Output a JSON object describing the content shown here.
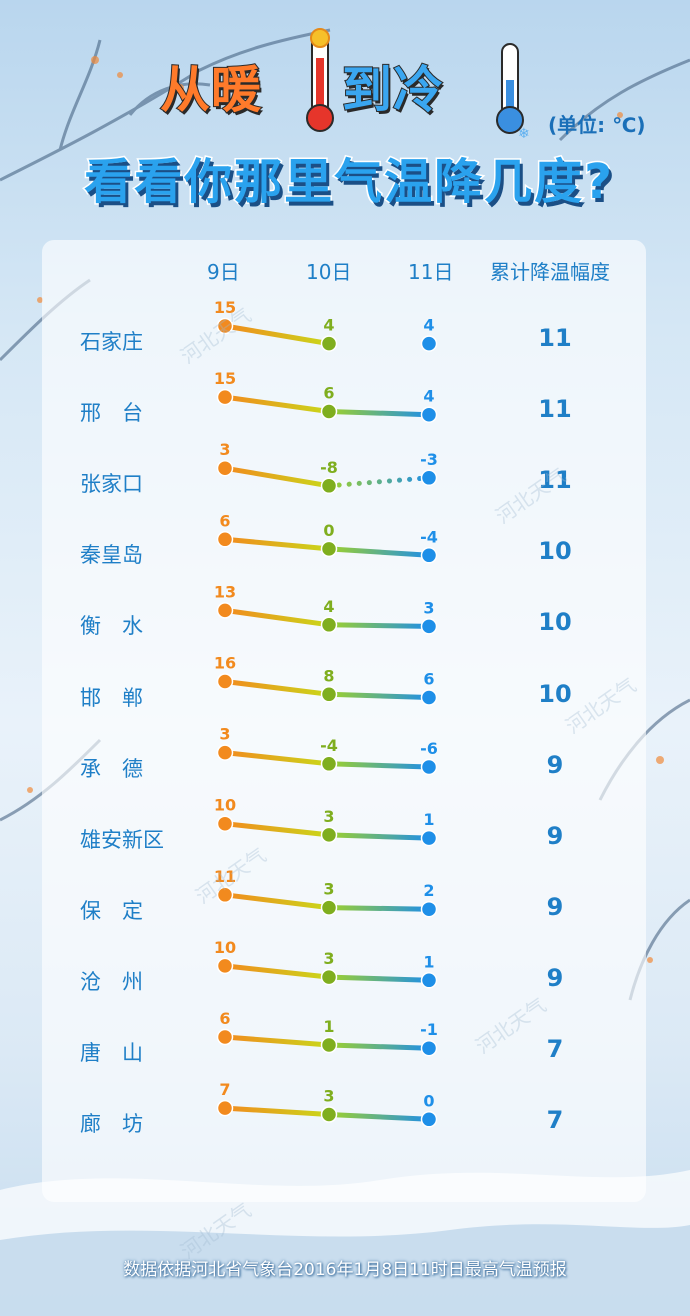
{
  "title": {
    "part_warm": "从暖",
    "part_to": "到冷",
    "subtitle": "看看你那里气温降几度?",
    "unit": "(单位: ℃)"
  },
  "watermark": "河北天气",
  "footer": "数据依据河北省气象台2016年1月8日11时日最高气温预报",
  "colors": {
    "warm": "#f28a1e",
    "mid": "#7fae1e",
    "cold": "#1e8fe8",
    "text": "#1f7fc7"
  },
  "chart_data": {
    "type": "table",
    "columns": [
      "9日",
      "10日",
      "11日",
      "累计降温幅度"
    ],
    "rows": [
      {
        "city": "石家庄",
        "values": [
          15,
          4,
          4
        ],
        "drop": 11
      },
      {
        "city": "邢　台",
        "values": [
          15,
          6,
          4
        ],
        "drop": 11
      },
      {
        "city": "张家口",
        "values": [
          3,
          -8,
          -3
        ],
        "drop": 11,
        "dotted_last_segment": true
      },
      {
        "city": "秦皇岛",
        "values": [
          6,
          0,
          -4
        ],
        "drop": 10
      },
      {
        "city": "衡　水",
        "values": [
          13,
          4,
          3
        ],
        "drop": 10
      },
      {
        "city": "邯　郸",
        "values": [
          16,
          8,
          6
        ],
        "drop": 10
      },
      {
        "city": "承　德",
        "values": [
          3,
          -4,
          -6
        ],
        "drop": 9
      },
      {
        "city": "雄安新区",
        "values": [
          10,
          3,
          1
        ],
        "drop": 9
      },
      {
        "city": "保　定",
        "values": [
          11,
          3,
          2
        ],
        "drop": 9
      },
      {
        "city": "沧　州",
        "values": [
          10,
          3,
          1
        ],
        "drop": 9
      },
      {
        "city": "唐　山",
        "values": [
          6,
          1,
          -1
        ],
        "drop": 7
      },
      {
        "city": "廊　坊",
        "values": [
          7,
          3,
          0
        ],
        "drop": 7
      }
    ]
  }
}
